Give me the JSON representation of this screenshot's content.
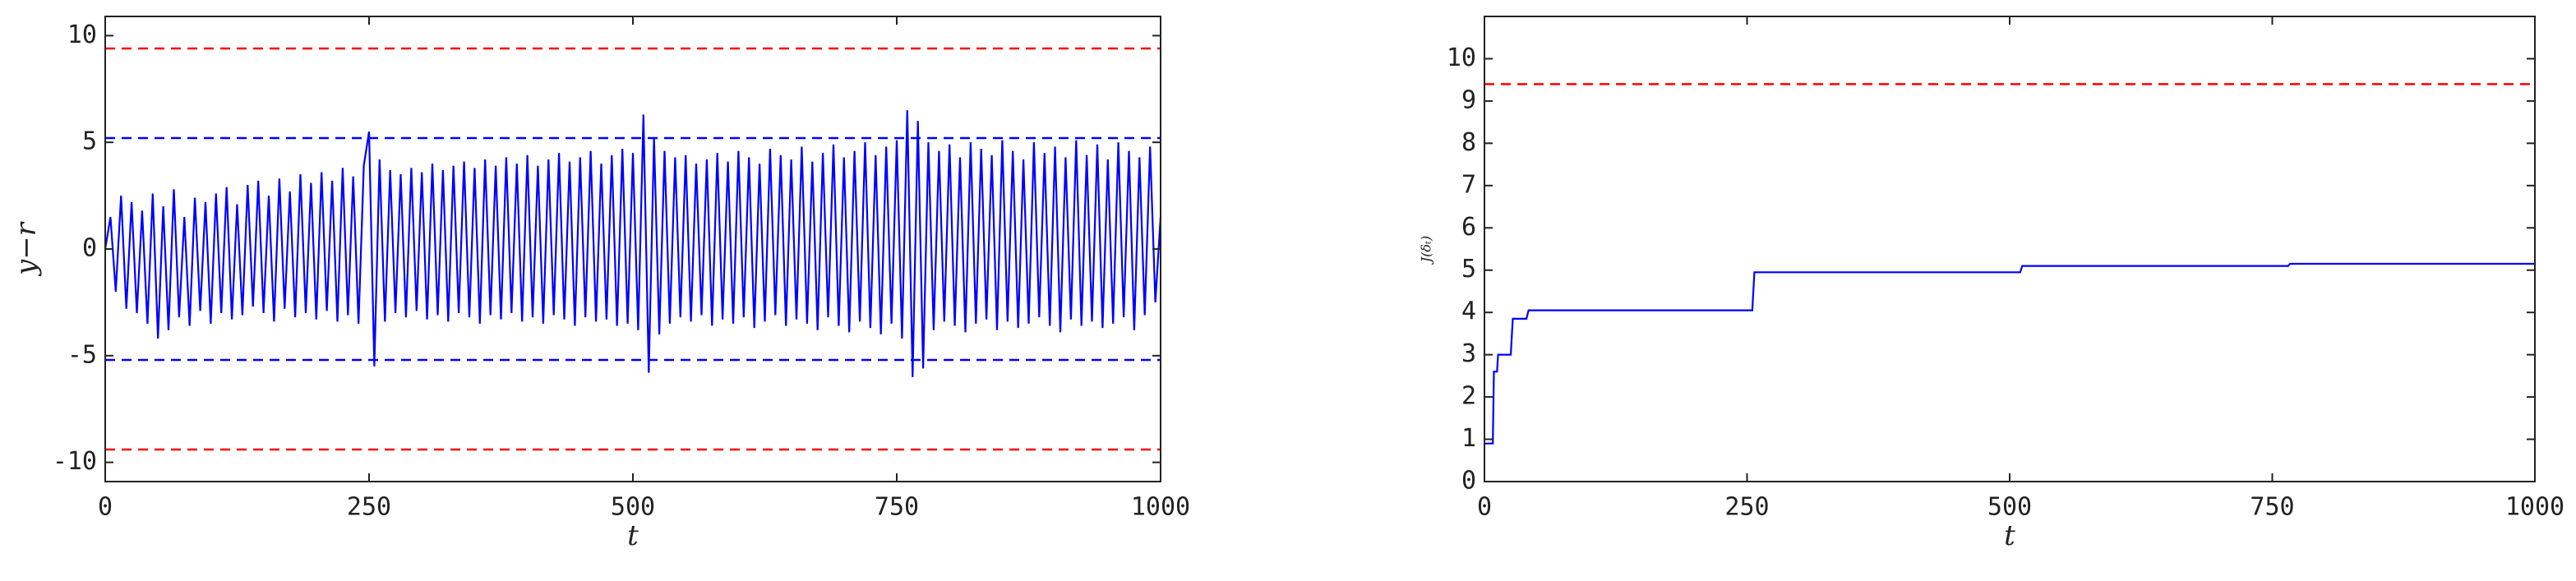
{
  "chart_data": [
    {
      "type": "line",
      "ylabel": "y−r",
      "xlabel": "t",
      "xlim": [
        0,
        1000
      ],
      "xticks": [
        0,
        250,
        500,
        750,
        1000
      ],
      "ylim": [
        -10.9,
        10.9
      ],
      "yticks": [
        -10,
        -5,
        0,
        5,
        10
      ],
      "reference_lines": [
        {
          "value": 9.4,
          "color": "#ff0000"
        },
        {
          "value": -9.4,
          "color": "#ff0000"
        },
        {
          "value": 5.2,
          "color": "#0000ff"
        },
        {
          "value": -5.2,
          "color": "#0000ff"
        }
      ],
      "x": [
        0,
        5,
        10,
        15,
        20,
        25,
        30,
        35,
        40,
        45,
        50,
        55,
        60,
        65,
        70,
        75,
        80,
        85,
        90,
        95,
        100,
        105,
        110,
        115,
        120,
        125,
        130,
        135,
        140,
        145,
        150,
        155,
        160,
        165,
        170,
        175,
        180,
        185,
        190,
        195,
        200,
        205,
        210,
        215,
        220,
        225,
        230,
        235,
        240,
        245,
        250,
        255,
        260,
        265,
        270,
        275,
        280,
        285,
        290,
        295,
        300,
        305,
        310,
        315,
        320,
        325,
        330,
        335,
        340,
        345,
        350,
        355,
        360,
        365,
        370,
        375,
        380,
        385,
        390,
        395,
        400,
        405,
        410,
        415,
        420,
        425,
        430,
        435,
        440,
        445,
        450,
        455,
        460,
        465,
        470,
        475,
        480,
        485,
        490,
        495,
        500,
        505,
        510,
        515,
        520,
        525,
        530,
        535,
        540,
        545,
        550,
        555,
        560,
        565,
        570,
        575,
        580,
        585,
        590,
        595,
        600,
        605,
        610,
        615,
        620,
        625,
        630,
        635,
        640,
        645,
        650,
        655,
        660,
        665,
        670,
        675,
        680,
        685,
        690,
        695,
        700,
        705,
        710,
        715,
        720,
        725,
        730,
        735,
        740,
        745,
        750,
        755,
        760,
        765,
        770,
        775,
        780,
        785,
        790,
        795,
        800,
        805,
        810,
        815,
        820,
        825,
        830,
        835,
        840,
        845,
        850,
        855,
        860,
        865,
        870,
        875,
        880,
        885,
        890,
        895,
        900,
        905,
        910,
        915,
        920,
        925,
        930,
        935,
        940,
        945,
        950,
        955,
        960,
        965,
        970,
        975,
        980,
        985,
        990,
        995,
        1000
      ],
      "series": [
        {
          "color": "#0000ff",
          "values": [
            0,
            1.5,
            -2.0,
            2.5,
            -2.8,
            2.2,
            -3.0,
            1.8,
            -3.5,
            2.6,
            -4.2,
            2.0,
            -3.8,
            2.8,
            -3.2,
            1.5,
            -3.6,
            2.4,
            -2.9,
            2.2,
            -3.5,
            2.6,
            -3.0,
            2.9,
            -3.3,
            2.1,
            -3.1,
            3.0,
            -2.7,
            3.2,
            -3.0,
            2.5,
            -3.4,
            3.3,
            -2.8,
            2.7,
            -3.2,
            3.5,
            -3.0,
            3.1,
            -3.3,
            3.6,
            -2.9,
            3.2,
            -3.4,
            3.8,
            -3.1,
            3.4,
            -3.5,
            3.9,
            5.5,
            -5.5,
            4.2,
            -3.4,
            3.7,
            -3.0,
            3.5,
            -3.2,
            3.8,
            -2.9,
            3.6,
            -3.3,
            4.0,
            -3.1,
            3.7,
            -3.4,
            3.9,
            -3.0,
            4.1,
            -3.2,
            3.8,
            -3.5,
            4.2,
            -3.1,
            3.9,
            -3.3,
            4.3,
            -3.0,
            4.0,
            -3.4,
            4.4,
            -3.2,
            3.9,
            -3.5,
            4.2,
            -3.1,
            4.5,
            -3.3,
            4.1,
            -3.6,
            4.3,
            -3.2,
            4.6,
            -3.4,
            4.0,
            -3.3,
            4.4,
            -3.6,
            4.7,
            -3.5,
            4.5,
            -3.8,
            6.3,
            -5.8,
            5.2,
            -4.0,
            4.6,
            -3.5,
            4.3,
            -3.2,
            4.4,
            -3.4,
            4.0,
            -3.1,
            4.2,
            -3.6,
            4.5,
            -3.3,
            4.1,
            -3.5,
            4.6,
            -3.2,
            4.3,
            -3.7,
            4.0,
            -3.4,
            4.7,
            -3.1,
            4.4,
            -3.6,
            4.2,
            -3.3,
            4.8,
            -3.5,
            4.1,
            -3.8,
            4.5,
            -3.2,
            4.9,
            -3.6,
            4.3,
            -3.9,
            4.6,
            -3.4,
            5.0,
            -3.7,
            4.4,
            -4.0,
            4.8,
            -3.5,
            5.1,
            -4.2,
            6.5,
            -6.0,
            6.0,
            -5.6,
            5.0,
            -3.8,
            4.6,
            -3.4,
            4.9,
            -3.6,
            4.3,
            -3.9,
            5.0,
            -3.5,
            4.7,
            -3.3,
            4.4,
            -3.8,
            5.1,
            -3.4,
            4.6,
            -3.7,
            4.2,
            -3.5,
            5.0,
            -3.2,
            4.5,
            -3.6,
            4.8,
            -3.9,
            4.3,
            -3.3,
            5.1,
            -3.6,
            4.4,
            -3.4,
            4.9,
            -3.7,
            4.2,
            -3.5,
            5.0,
            -3.2,
            4.6,
            -3.8,
            4.3,
            -3.1,
            4.8,
            -2.5,
            1.5
          ]
        }
      ]
    },
    {
      "type": "line",
      "ylabel": "J(δₜ)",
      "xlabel": "t",
      "xlim": [
        0,
        1000
      ],
      "xticks": [
        0,
        250,
        500,
        750,
        1000
      ],
      "ylim": [
        0,
        11
      ],
      "yticks": [
        0,
        1,
        2,
        3,
        4,
        5,
        6,
        7,
        8,
        9,
        10
      ],
      "reference_lines": [
        {
          "value": 9.4,
          "color": "#ff0000"
        }
      ],
      "x": [
        0,
        8,
        9,
        12,
        13,
        25,
        27,
        40,
        42,
        255,
        257,
        510,
        512,
        765,
        767,
        1000
      ],
      "series": [
        {
          "color": "#0000ff",
          "values": [
            0.9,
            0.9,
            2.6,
            2.6,
            3.0,
            3.0,
            3.85,
            3.85,
            4.05,
            4.05,
            4.95,
            4.95,
            5.1,
            5.1,
            5.15,
            5.15
          ]
        }
      ]
    }
  ]
}
